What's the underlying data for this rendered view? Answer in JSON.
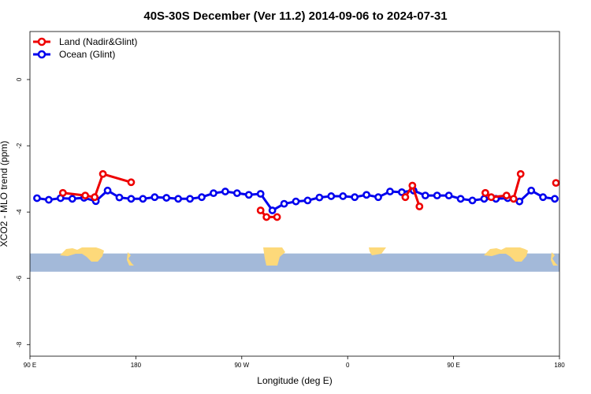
{
  "chart_data": {
    "type": "line",
    "title": "40S-30S December (Ver 11.2)   2014-09-06 to 2024-07-31",
    "xlabel": "Longitude (deg E)",
    "ylabel": "XCO2 - MLO trend (ppm)",
    "xlim": [
      90,
      540
    ],
    "ylim": [
      -8.35,
      1.45
    ],
    "x_ticks": [
      {
        "value": 90,
        "label": "90 E"
      },
      {
        "value": 180,
        "label": "180"
      },
      {
        "value": 270,
        "label": "90 W"
      },
      {
        "value": 360,
        "label": "0"
      },
      {
        "value": 450,
        "label": "90 E"
      },
      {
        "value": 540,
        "label": "180"
      }
    ],
    "y_ticks": [
      {
        "value": 0,
        "label": "0"
      },
      {
        "value": -2,
        "label": "-2"
      },
      {
        "value": -4,
        "label": "-4"
      },
      {
        "value": -6,
        "label": "-6"
      },
      {
        "value": -8,
        "label": "-8"
      }
    ],
    "map_band": {
      "y_top": -5.25,
      "y_bottom": -5.8,
      "ocean_color": "#a3b9d9",
      "land_color": "#fdd97a"
    },
    "legend_position": "top-left",
    "series": [
      {
        "name": "Land (Nadir&Glint)",
        "color": "#ee0000",
        "segments": [
          [
            [
              118,
              -3.42
            ],
            [
              137,
              -3.5
            ],
            [
              145,
              -3.55
            ],
            [
              152,
              -2.85
            ],
            [
              176,
              -3.1
            ]
          ],
          [
            [
              286,
              -3.95
            ],
            [
              291,
              -4.15
            ],
            [
              300,
              -4.15
            ]
          ],
          [
            [
              409,
              -3.55
            ],
            [
              415,
              -3.2
            ],
            [
              421,
              -3.83
            ]
          ],
          [
            [
              477,
              -3.42
            ],
            [
              482,
              -3.55
            ],
            [
              495,
              -3.5
            ],
            [
              501,
              -3.6
            ],
            [
              507,
              -2.85
            ]
          ],
          [
            [
              537,
              -3.12
            ]
          ]
        ]
      },
      {
        "name": "Ocean (Glint)",
        "color": "#0000ee",
        "segments": [
          [
            [
              96,
              -3.58
            ],
            [
              106,
              -3.63
            ],
            [
              116,
              -3.58
            ],
            [
              126,
              -3.6
            ],
            [
              136,
              -3.57
            ],
            [
              146,
              -3.67
            ],
            [
              156,
              -3.35
            ],
            [
              166,
              -3.56
            ],
            [
              176,
              -3.6
            ],
            [
              186,
              -3.6
            ],
            [
              196,
              -3.55
            ],
            [
              206,
              -3.57
            ],
            [
              216,
              -3.6
            ],
            [
              226,
              -3.6
            ],
            [
              236,
              -3.55
            ],
            [
              246,
              -3.43
            ],
            [
              256,
              -3.38
            ],
            [
              266,
              -3.43
            ],
            [
              276,
              -3.48
            ],
            [
              286,
              -3.45
            ],
            [
              296,
              -3.95
            ],
            [
              306,
              -3.75
            ],
            [
              316,
              -3.68
            ],
            [
              326,
              -3.65
            ],
            [
              336,
              -3.56
            ],
            [
              346,
              -3.52
            ],
            [
              356,
              -3.52
            ],
            [
              366,
              -3.55
            ],
            [
              376,
              -3.48
            ],
            [
              386,
              -3.55
            ],
            [
              396,
              -3.38
            ],
            [
              406,
              -3.4
            ],
            [
              416,
              -3.35
            ],
            [
              426,
              -3.5
            ],
            [
              436,
              -3.5
            ],
            [
              446,
              -3.5
            ],
            [
              456,
              -3.6
            ],
            [
              466,
              -3.65
            ],
            [
              476,
              -3.6
            ],
            [
              486,
              -3.6
            ],
            [
              496,
              -3.58
            ],
            [
              506,
              -3.68
            ],
            [
              516,
              -3.35
            ],
            [
              526,
              -3.55
            ],
            [
              536,
              -3.6
            ]
          ]
        ]
      }
    ]
  }
}
